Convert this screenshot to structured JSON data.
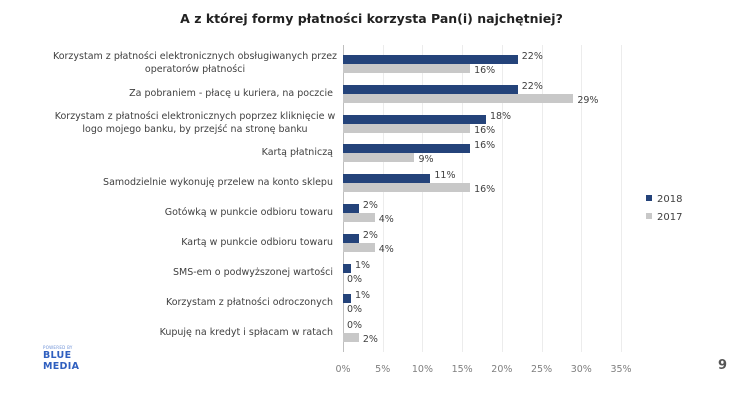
{
  "page": {
    "number": "9"
  },
  "logo": {
    "powered_by": "POWERED BY",
    "line1": "BLUE",
    "line2": "MEDIA"
  },
  "legend": [
    {
      "label": "2018",
      "color": "#24437a"
    },
    {
      "label": "2017",
      "color": "#c8c8c8"
    }
  ],
  "chart_data": {
    "type": "bar",
    "orientation": "horizontal",
    "title": "A z której formy płatności korzysta Pan(i) najchętniej?",
    "xlabel": "",
    "ylabel": "",
    "xlim": [
      0,
      35
    ],
    "x_ticks": [
      "0%",
      "5%",
      "10%",
      "15%",
      "20%",
      "25%",
      "30%",
      "35%"
    ],
    "grid": true,
    "legend_position": "right",
    "categories": [
      "Korzystam z płatności elektronicznych obsługiwanych przez operatorów płatności",
      "Za pobraniem - płacę u kuriera, na poczcie",
      "Korzystam z płatności elektronicznych poprzez kliknięcie w logo mojego banku, by przejść na stronę banku",
      "Kartą płatniczą",
      "Samodzielnie wykonuję przelew na konto sklepu",
      "Gotówką w punkcie odbioru towaru",
      "Kartą w punkcie odbioru towaru",
      "SMS-em o podwyższonej wartości",
      "Korzystam z płatności odroczonych",
      "Kupuję na kredyt i spłacam w ratach"
    ],
    "category_lines": [
      [
        "Korzystam z płatności elektronicznych obsługiwanych przez",
        "operatorów płatności"
      ],
      [
        "Za pobraniem - płacę u kuriera, na poczcie"
      ],
      [
        "Korzystam z płatności elektronicznych poprzez kliknięcie w",
        "logo mojego banku, by przejść na stronę banku"
      ],
      [
        "Kartą płatniczą"
      ],
      [
        "Samodzielnie wykonuję przelew na konto sklepu"
      ],
      [
        "Gotówką w punkcie odbioru towaru"
      ],
      [
        "Kartą w punkcie odbioru towaru"
      ],
      [
        "SMS-em o podwyższonej wartości"
      ],
      [
        "Korzystam z płatności odroczonych"
      ],
      [
        "Kupuję na kredyt i spłacam w ratach"
      ]
    ],
    "series": [
      {
        "name": "2018",
        "color": "#24437a",
        "values": [
          22,
          22,
          18,
          16,
          11,
          2,
          2,
          1,
          1,
          0
        ]
      },
      {
        "name": "2017",
        "color": "#c8c8c8",
        "values": [
          16,
          29,
          16,
          9,
          16,
          4,
          4,
          0,
          0,
          2
        ]
      }
    ]
  }
}
